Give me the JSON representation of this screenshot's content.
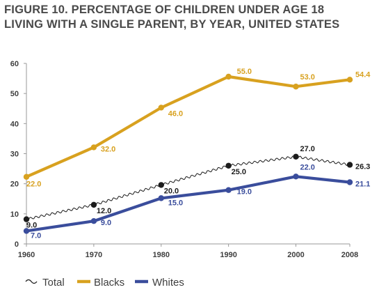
{
  "title_lines": [
    "FIGURE 10.  PERCENTAGE OF CHILDREN UNDER AGE 18",
    "LIVING WITH A SINGLE PARENT, BY YEAR, UNITED STATES"
  ],
  "colors": {
    "total": "#1c1c1c",
    "blacks": "#d8a11f",
    "whites": "#3a4d9c",
    "axis": "#9a9a9a",
    "text": "#3e3e3e"
  },
  "chart_data": {
    "type": "line",
    "title": "FIGURE 10.  PERCENTAGE OF CHILDREN UNDER AGE 18 LIVING WITH A SINGLE PARENT, BY YEAR, UNITED STATES",
    "x": [
      1960,
      1970,
      1980,
      1990,
      2000,
      2008
    ],
    "x_tick_labels": [
      "1960",
      "1970",
      "1980",
      "1990",
      "2000",
      "2008"
    ],
    "y_tick_labels": [
      "0",
      "10",
      "20",
      "30",
      "40",
      "50",
      "60"
    ],
    "ylim": [
      0,
      60
    ],
    "xlim": [
      1960,
      2008
    ],
    "grid": false,
    "legend_position": "bottom",
    "series": [
      {
        "name": "Total",
        "key": "total",
        "style": "wavy",
        "values": [
          9.0,
          12.0,
          20.0,
          25.0,
          27.0,
          26.3
        ],
        "labels": [
          "9.0",
          "12.0",
          "20.0",
          "25.0",
          "27.0",
          "26.3"
        ],
        "plot_y": [
          8.2,
          13.0,
          19.6,
          26.0,
          29.0,
          26.3
        ]
      },
      {
        "name": "Blacks",
        "key": "blacks",
        "style": "solid",
        "values": [
          22.0,
          32.0,
          46.0,
          55.0,
          53.0,
          54.4
        ],
        "labels": [
          "22.0",
          "32.0",
          "46.0",
          "55.0",
          "53.0",
          "54.4"
        ],
        "plot_y": [
          22.3,
          32.1,
          45.3,
          55.6,
          52.3,
          54.6
        ]
      },
      {
        "name": "Whites",
        "key": "whites",
        "style": "solid",
        "values": [
          7.0,
          9.0,
          15.0,
          19.0,
          22.0,
          21.1
        ],
        "labels": [
          "7.0",
          "9.0",
          "15.0",
          "19.0",
          "22.0",
          "21.1"
        ],
        "plot_y": [
          4.3,
          7.6,
          15.2,
          17.9,
          22.4,
          20.5
        ]
      }
    ]
  }
}
